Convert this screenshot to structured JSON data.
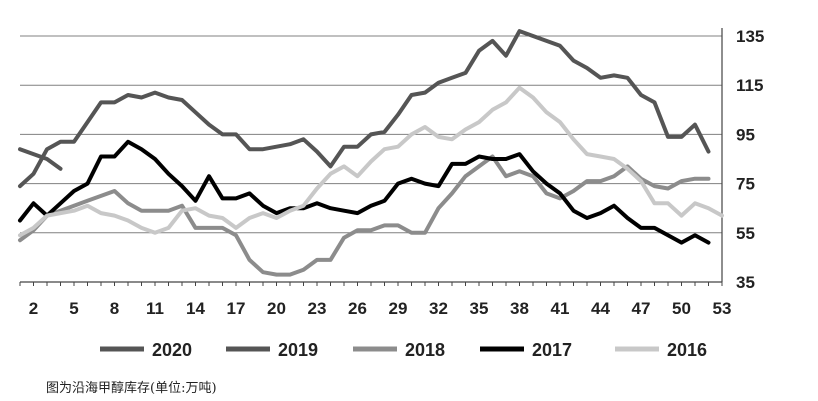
{
  "caption": "图为沿海甲醇库存(单位:万吨)",
  "chart_data": {
    "type": "line",
    "xlabel": "",
    "ylabel": "",
    "xlim": [
      1,
      53
    ],
    "ylim": [
      35,
      135
    ],
    "x_ticks": [
      2,
      5,
      8,
      11,
      14,
      17,
      20,
      23,
      26,
      29,
      32,
      35,
      38,
      41,
      44,
      47,
      50,
      53
    ],
    "y_ticks": [
      35,
      55,
      75,
      95,
      115,
      135
    ],
    "y_axis_side": "right",
    "grid": "horizontal",
    "legend_position": "bottom",
    "series": [
      {
        "name": "2020",
        "color": "#555555",
        "x": [
          1,
          2,
          3,
          4
        ],
        "values": [
          89,
          87,
          85,
          81
        ]
      },
      {
        "name": "2019",
        "color": "#555555",
        "x": [
          1,
          2,
          3,
          4,
          5,
          6,
          7,
          8,
          9,
          10,
          11,
          12,
          13,
          14,
          15,
          16,
          17,
          18,
          19,
          20,
          21,
          22,
          23,
          24,
          25,
          26,
          27,
          28,
          29,
          30,
          31,
          32,
          33,
          34,
          35,
          36,
          37,
          38,
          39,
          40,
          41,
          42,
          43,
          44,
          45,
          46,
          47,
          48,
          49,
          50,
          51,
          52
        ],
        "values": [
          74,
          79,
          89,
          92,
          92,
          100,
          108,
          108,
          111,
          110,
          112,
          110,
          109,
          104,
          99,
          95,
          95,
          89,
          89,
          90,
          91,
          93,
          88,
          82,
          90,
          90,
          95,
          96,
          103,
          111,
          112,
          116,
          118,
          120,
          129,
          133,
          127,
          137,
          135,
          133,
          131,
          125,
          122,
          118,
          119,
          118,
          111,
          108,
          94,
          94,
          99,
          88
        ]
      },
      {
        "name": "2018",
        "color": "#8c8c8c",
        "x": [
          1,
          2,
          3,
          4,
          5,
          6,
          7,
          8,
          9,
          10,
          11,
          12,
          13,
          14,
          15,
          16,
          17,
          18,
          19,
          20,
          21,
          22,
          23,
          24,
          25,
          26,
          27,
          28,
          29,
          30,
          31,
          32,
          33,
          34,
          35,
          36,
          37,
          38,
          39,
          40,
          41,
          42,
          43,
          44,
          45,
          46,
          47,
          48,
          49,
          50,
          51,
          52
        ],
        "values": [
          52,
          56,
          62,
          64,
          66,
          68,
          70,
          72,
          67,
          64,
          64,
          64,
          66,
          57,
          57,
          57,
          54,
          44,
          39,
          38,
          38,
          40,
          44,
          44,
          53,
          56,
          56,
          58,
          58,
          55,
          55,
          65,
          71,
          78,
          82,
          86,
          78,
          80,
          78,
          71,
          69,
          72,
          76,
          76,
          78,
          82,
          77,
          74,
          73,
          76,
          77,
          77
        ]
      },
      {
        "name": "2017",
        "color": "#000000",
        "x": [
          1,
          2,
          3,
          4,
          5,
          6,
          7,
          8,
          9,
          10,
          11,
          12,
          13,
          14,
          15,
          16,
          17,
          18,
          19,
          20,
          21,
          22,
          23,
          24,
          25,
          26,
          27,
          28,
          29,
          30,
          31,
          32,
          33,
          34,
          35,
          36,
          37,
          38,
          39,
          40,
          41,
          42,
          43,
          44,
          45,
          46,
          47,
          48,
          49,
          50,
          51,
          52
        ],
        "values": [
          60,
          67,
          62,
          67,
          72,
          75,
          86,
          86,
          92,
          89,
          85,
          79,
          74,
          68,
          78,
          69,
          69,
          71,
          66,
          63,
          65,
          65,
          67,
          65,
          64,
          63,
          66,
          68,
          75,
          77,
          75,
          74,
          83,
          83,
          86,
          85,
          85,
          87,
          80,
          75,
          71,
          64,
          61,
          63,
          66,
          61,
          57,
          57,
          54,
          51,
          54,
          51
        ]
      },
      {
        "name": "2016",
        "color": "#c8c8c8",
        "x": [
          1,
          2,
          3,
          4,
          5,
          6,
          7,
          8,
          9,
          10,
          11,
          12,
          13,
          14,
          15,
          16,
          17,
          18,
          19,
          20,
          21,
          22,
          23,
          24,
          25,
          26,
          27,
          28,
          29,
          30,
          31,
          32,
          33,
          34,
          35,
          36,
          37,
          38,
          39,
          40,
          41,
          42,
          43,
          44,
          45,
          46,
          47,
          48,
          49,
          50,
          51,
          52,
          53
        ],
        "values": [
          54,
          57,
          62,
          63,
          64,
          66,
          63,
          62,
          60,
          57,
          55,
          57,
          64,
          65,
          62,
          61,
          57,
          61,
          63,
          61,
          64,
          66,
          73,
          79,
          82,
          78,
          84,
          89,
          90,
          95,
          98,
          94,
          93,
          97,
          100,
          105,
          108,
          114,
          110,
          104,
          100,
          93,
          87,
          86,
          85,
          81,
          76,
          67,
          67,
          62,
          67,
          65,
          62
        ]
      }
    ]
  }
}
